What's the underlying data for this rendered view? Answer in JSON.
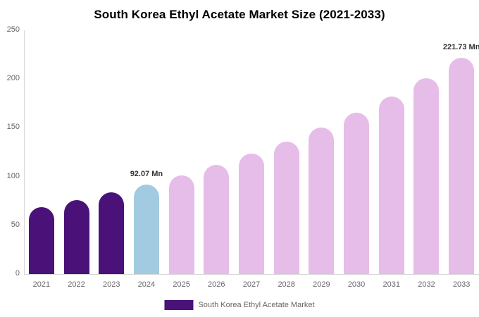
{
  "title": "South Korea Ethyl Acetate Market Size (2021-2033)",
  "legend": {
    "label": "South Korea Ethyl Acetate Market",
    "swatch_color": "#4A1278"
  },
  "colors": {
    "historical_bar": "#4A1278",
    "highlight_bar": "#A2CAE0",
    "forecast_bar": "#E6BCE8",
    "axis_line": "#D6D6D6",
    "tick_label": "#666666",
    "annotation_text": "#333333",
    "title_text": "#000000",
    "background": "#FFFFFF"
  },
  "chart_data": {
    "type": "bar",
    "title": "South Korea Ethyl Acetate Market Size (2021-2033)",
    "xlabel": "",
    "ylabel": "",
    "unit": "Mn",
    "grid": false,
    "legend_position": "bottom",
    "ylim": [
      0,
      250
    ],
    "yticks": [
      0,
      50,
      100,
      150,
      200,
      250
    ],
    "categories": [
      "2021",
      "2022",
      "2023",
      "2024",
      "2025",
      "2026",
      "2027",
      "2028",
      "2029",
      "2030",
      "2031",
      "2032",
      "2033"
    ],
    "values": [
      68.7,
      75.7,
      83.5,
      92.07,
      101.5,
      111.9,
      123.4,
      136.1,
      150.0,
      165.4,
      182.4,
      201.1,
      221.73
    ],
    "series_name": "South Korea Ethyl Acetate Market",
    "bar_colors": [
      "#4A1278",
      "#4A1278",
      "#4A1278",
      "#A2CAE0",
      "#E6BCE8",
      "#E6BCE8",
      "#E6BCE8",
      "#E6BCE8",
      "#E6BCE8",
      "#E6BCE8",
      "#E6BCE8",
      "#E6BCE8",
      "#E6BCE8"
    ],
    "annotations": [
      {
        "category": "2024",
        "text": "92.07 Mn"
      },
      {
        "category": "2033",
        "text": "221.73 Mn"
      }
    ]
  }
}
